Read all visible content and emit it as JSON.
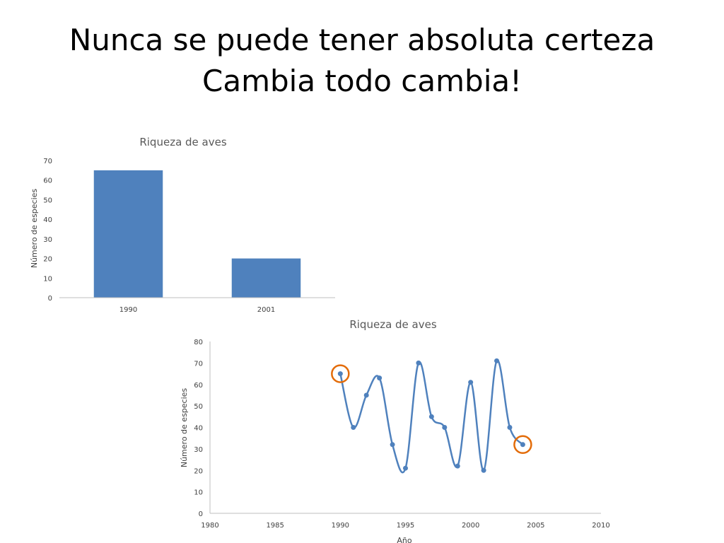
{
  "slide": {
    "title_line1": "Nunca se puede tener absoluta certeza",
    "title_line2": "Cambia todo cambia!"
  },
  "colors": {
    "series": "#4F81BD",
    "highlight_circle": "#E36C09",
    "axis": "#BFBFBF",
    "text": "#404040"
  },
  "chart_data": [
    {
      "type": "bar",
      "title": "Riqueza de aves",
      "ylabel": "Número de especies",
      "xlabel": "",
      "categories": [
        "1990",
        "2001"
      ],
      "values": [
        65,
        20
      ],
      "ylim": [
        0,
        70
      ],
      "yticks": [
        "0",
        "10",
        "20",
        "30",
        "40",
        "50",
        "60",
        "70"
      ],
      "grid": false,
      "legend": "none"
    },
    {
      "type": "line",
      "smooth": true,
      "markers": true,
      "title": "Riqueza de aves",
      "xlabel": "Año",
      "ylabel": "Número de especies",
      "x": [
        1990,
        1991,
        1992,
        1993,
        1994,
        1995,
        1996,
        1997,
        1998,
        1999,
        2000,
        2001,
        2002,
        2003,
        2004
      ],
      "y": [
        65,
        40,
        55,
        63,
        32,
        21,
        70,
        45,
        40,
        22,
        61,
        20,
        71,
        40,
        32
      ],
      "xlim": [
        1980,
        2010
      ],
      "ylim": [
        0,
        80
      ],
      "xticks": [
        "1980",
        "1985",
        "1990",
        "1995",
        "2000",
        "2005",
        "2010"
      ],
      "yticks": [
        "0",
        "10",
        "20",
        "30",
        "40",
        "50",
        "60",
        "70",
        "80"
      ],
      "highlighted_points": [
        [
          1990,
          65
        ],
        [
          2004,
          32
        ]
      ],
      "grid": false,
      "legend": "none"
    }
  ]
}
